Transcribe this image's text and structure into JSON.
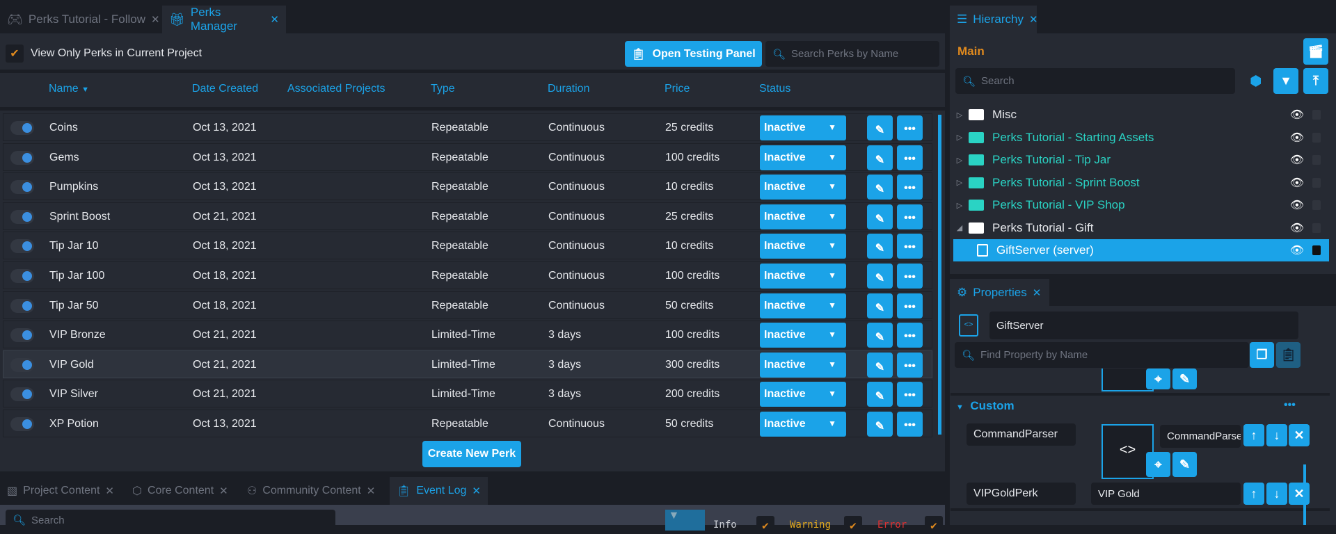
{
  "tabs": [
    {
      "label": "Perks Tutorial - Follow",
      "icon": "gamepad-wrench-icon",
      "active": false
    },
    {
      "label": "Perks Manager",
      "icon": "gift-icon",
      "active": true
    }
  ],
  "perks_manager": {
    "view_only_label": "View Only Perks in Current Project",
    "view_only_checked": true,
    "open_testing_panel": "Open Testing Panel",
    "search_placeholder": "Search Perks by Name",
    "columns": [
      "Name",
      "Date Created",
      "Associated Projects",
      "Type",
      "Duration",
      "Price",
      "Status"
    ],
    "sort_indicator": "▼",
    "rows": [
      {
        "name": "Coins",
        "date": "Oct 13, 2021",
        "projects": "",
        "type": "Repeatable",
        "duration": "Continuous",
        "price": "25 credits",
        "status": "Inactive"
      },
      {
        "name": "Gems",
        "date": "Oct 13, 2021",
        "projects": "",
        "type": "Repeatable",
        "duration": "Continuous",
        "price": "100 credits",
        "status": "Inactive"
      },
      {
        "name": "Pumpkins",
        "date": "Oct 13, 2021",
        "projects": "",
        "type": "Repeatable",
        "duration": "Continuous",
        "price": "10 credits",
        "status": "Inactive"
      },
      {
        "name": "Sprint Boost",
        "date": "Oct 21, 2021",
        "projects": "",
        "type": "Repeatable",
        "duration": "Continuous",
        "price": "25 credits",
        "status": "Inactive"
      },
      {
        "name": "Tip Jar 10",
        "date": "Oct 18, 2021",
        "projects": "",
        "type": "Repeatable",
        "duration": "Continuous",
        "price": "10 credits",
        "status": "Inactive"
      },
      {
        "name": "Tip Jar 100",
        "date": "Oct 18, 2021",
        "projects": "",
        "type": "Repeatable",
        "duration": "Continuous",
        "price": "100 credits",
        "status": "Inactive"
      },
      {
        "name": "Tip Jar 50",
        "date": "Oct 18, 2021",
        "projects": "",
        "type": "Repeatable",
        "duration": "Continuous",
        "price": "50 credits",
        "status": "Inactive"
      },
      {
        "name": "VIP Bronze",
        "date": "Oct 21, 2021",
        "projects": "",
        "type": "Limited-Time",
        "duration": "3 days",
        "price": "100 credits",
        "status": "Inactive"
      },
      {
        "name": "VIP Gold",
        "date": "Oct 21, 2021",
        "projects": "",
        "type": "Limited-Time",
        "duration": "3 days",
        "price": "300 credits",
        "status": "Inactive",
        "selected": true
      },
      {
        "name": "VIP Silver",
        "date": "Oct 21, 2021",
        "projects": "",
        "type": "Limited-Time",
        "duration": "3 days",
        "price": "200 credits",
        "status": "Inactive"
      },
      {
        "name": "XP Potion",
        "date": "Oct 13, 2021",
        "projects": "",
        "type": "Repeatable",
        "duration": "Continuous",
        "price": "50 credits",
        "status": "Inactive"
      }
    ],
    "create_button": "Create New Perk"
  },
  "bottom_tabs": [
    {
      "label": "Project Content",
      "icon": "project-content-icon",
      "active": false
    },
    {
      "label": "Core Content",
      "icon": "core-content-icon",
      "active": false
    },
    {
      "label": "Community Content",
      "icon": "community-content-icon",
      "active": false
    },
    {
      "label": "Event Log",
      "icon": "clipboard-icon",
      "active": true
    }
  ],
  "event_log": {
    "search_placeholder": "Search",
    "filters": [
      {
        "label": "Info",
        "color": "#c9ccd2"
      },
      {
        "label": "Warning",
        "color": "#e0a81e"
      },
      {
        "label": "Error",
        "color": "#e03030"
      }
    ]
  },
  "hierarchy": {
    "tab_label": "Hierarchy",
    "scene": "Main",
    "search_placeholder": "Search",
    "items": [
      {
        "label": "Misc",
        "expanded": false,
        "color": "#e6e8ec"
      },
      {
        "label": "Perks Tutorial - Starting Assets",
        "expanded": false,
        "color": "#2ad3c4"
      },
      {
        "label": "Perks Tutorial - Tip Jar",
        "expanded": false,
        "color": "#2ad3c4"
      },
      {
        "label": "Perks Tutorial - Sprint Boost",
        "expanded": false,
        "color": "#2ad3c4"
      },
      {
        "label": "Perks Tutorial - VIP Shop",
        "expanded": false,
        "color": "#2ad3c4"
      },
      {
        "label": "Perks Tutorial - Gift",
        "expanded": true,
        "color": "#e6e8ec"
      },
      {
        "label": "GiftServer (server)",
        "selected": true,
        "color": "#ffffff"
      }
    ]
  },
  "properties": {
    "tab_label": "Properties",
    "object_name": "GiftServer",
    "search_placeholder": "Find Property by Name",
    "section": "Custom",
    "custom": [
      {
        "name": "CommandParser",
        "value": "CommandParser"
      },
      {
        "name": "VIPGoldPerk",
        "value": "VIP Gold"
      }
    ]
  },
  "colors": {
    "accent": "#1ba3e8",
    "scene": "#e08a1e",
    "panel": "#262a33",
    "background": "#1b1e25"
  }
}
